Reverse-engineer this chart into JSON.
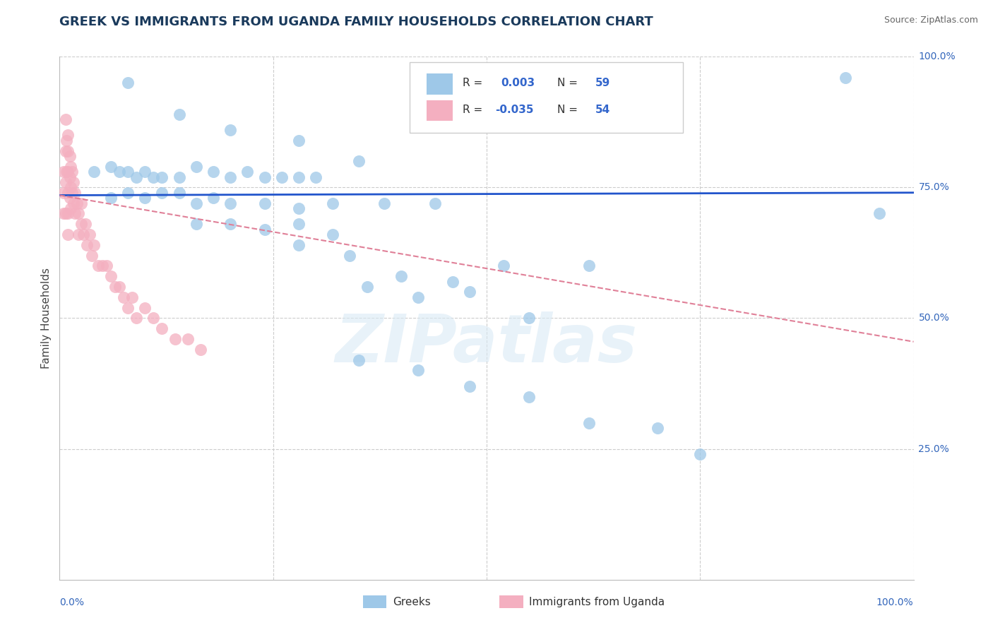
{
  "title": "GREEK VS IMMIGRANTS FROM UGANDA FAMILY HOUSEHOLDS CORRELATION CHART",
  "source_text": "Source: ZipAtlas.com",
  "ylabel": "Family Households",
  "xlim": [
    0.0,
    1.0
  ],
  "ylim": [
    0.0,
    1.0
  ],
  "blue_scatter_x": [
    0.08,
    0.14,
    0.2,
    0.28,
    0.35,
    0.04,
    0.06,
    0.07,
    0.08,
    0.09,
    0.1,
    0.11,
    0.12,
    0.14,
    0.16,
    0.18,
    0.2,
    0.22,
    0.24,
    0.26,
    0.28,
    0.3,
    0.06,
    0.08,
    0.1,
    0.12,
    0.14,
    0.16,
    0.18,
    0.2,
    0.24,
    0.28,
    0.32,
    0.16,
    0.2,
    0.24,
    0.28,
    0.32,
    0.38,
    0.44,
    0.28,
    0.34,
    0.4,
    0.46,
    0.52,
    0.36,
    0.42,
    0.48,
    0.55,
    0.62,
    0.35,
    0.42,
    0.48,
    0.55,
    0.62,
    0.7,
    0.75,
    0.92,
    0.96
  ],
  "blue_scatter_y": [
    0.95,
    0.89,
    0.86,
    0.84,
    0.8,
    0.78,
    0.79,
    0.78,
    0.78,
    0.77,
    0.78,
    0.77,
    0.77,
    0.77,
    0.79,
    0.78,
    0.77,
    0.78,
    0.77,
    0.77,
    0.77,
    0.77,
    0.73,
    0.74,
    0.73,
    0.74,
    0.74,
    0.72,
    0.73,
    0.72,
    0.72,
    0.71,
    0.72,
    0.68,
    0.68,
    0.67,
    0.68,
    0.66,
    0.72,
    0.72,
    0.64,
    0.62,
    0.58,
    0.57,
    0.6,
    0.56,
    0.54,
    0.55,
    0.5,
    0.6,
    0.42,
    0.4,
    0.37,
    0.35,
    0.3,
    0.29,
    0.24,
    0.96,
    0.7
  ],
  "pink_scatter_x": [
    0.005,
    0.005,
    0.005,
    0.007,
    0.007,
    0.007,
    0.007,
    0.008,
    0.008,
    0.01,
    0.01,
    0.01,
    0.01,
    0.01,
    0.01,
    0.012,
    0.012,
    0.012,
    0.013,
    0.013,
    0.013,
    0.015,
    0.015,
    0.016,
    0.016,
    0.018,
    0.018,
    0.02,
    0.022,
    0.022,
    0.025,
    0.025,
    0.028,
    0.03,
    0.032,
    0.035,
    0.038,
    0.04,
    0.045,
    0.05,
    0.055,
    0.06,
    0.065,
    0.07,
    0.075,
    0.08,
    0.085,
    0.09,
    0.1,
    0.11,
    0.12,
    0.135,
    0.15,
    0.165
  ],
  "pink_scatter_y": [
    0.78,
    0.74,
    0.7,
    0.88,
    0.82,
    0.76,
    0.7,
    0.84,
    0.78,
    0.85,
    0.82,
    0.78,
    0.74,
    0.7,
    0.66,
    0.81,
    0.77,
    0.73,
    0.79,
    0.75,
    0.71,
    0.78,
    0.74,
    0.76,
    0.72,
    0.74,
    0.7,
    0.72,
    0.7,
    0.66,
    0.72,
    0.68,
    0.66,
    0.68,
    0.64,
    0.66,
    0.62,
    0.64,
    0.6,
    0.6,
    0.6,
    0.58,
    0.56,
    0.56,
    0.54,
    0.52,
    0.54,
    0.5,
    0.52,
    0.5,
    0.48,
    0.46,
    0.46,
    0.44
  ],
  "blue_line_x": [
    0.0,
    1.0
  ],
  "blue_line_y": [
    0.735,
    0.74
  ],
  "pink_line_x": [
    0.0,
    1.0
  ],
  "pink_line_y": [
    0.735,
    0.455
  ],
  "watermark": "ZIPatlas",
  "title_color": "#1a3a5c",
  "source_color": "#666666",
  "tick_color": "#3366bb",
  "grid_color": "#cccccc",
  "blue_color": "#9ec8e8",
  "pink_color": "#f4afc0",
  "blue_line_color": "#2255cc",
  "pink_line_color": "#e08098",
  "legend_R_color": "#3366cc",
  "legend_N_color": "#3366cc",
  "legend_text_color": "#333333"
}
